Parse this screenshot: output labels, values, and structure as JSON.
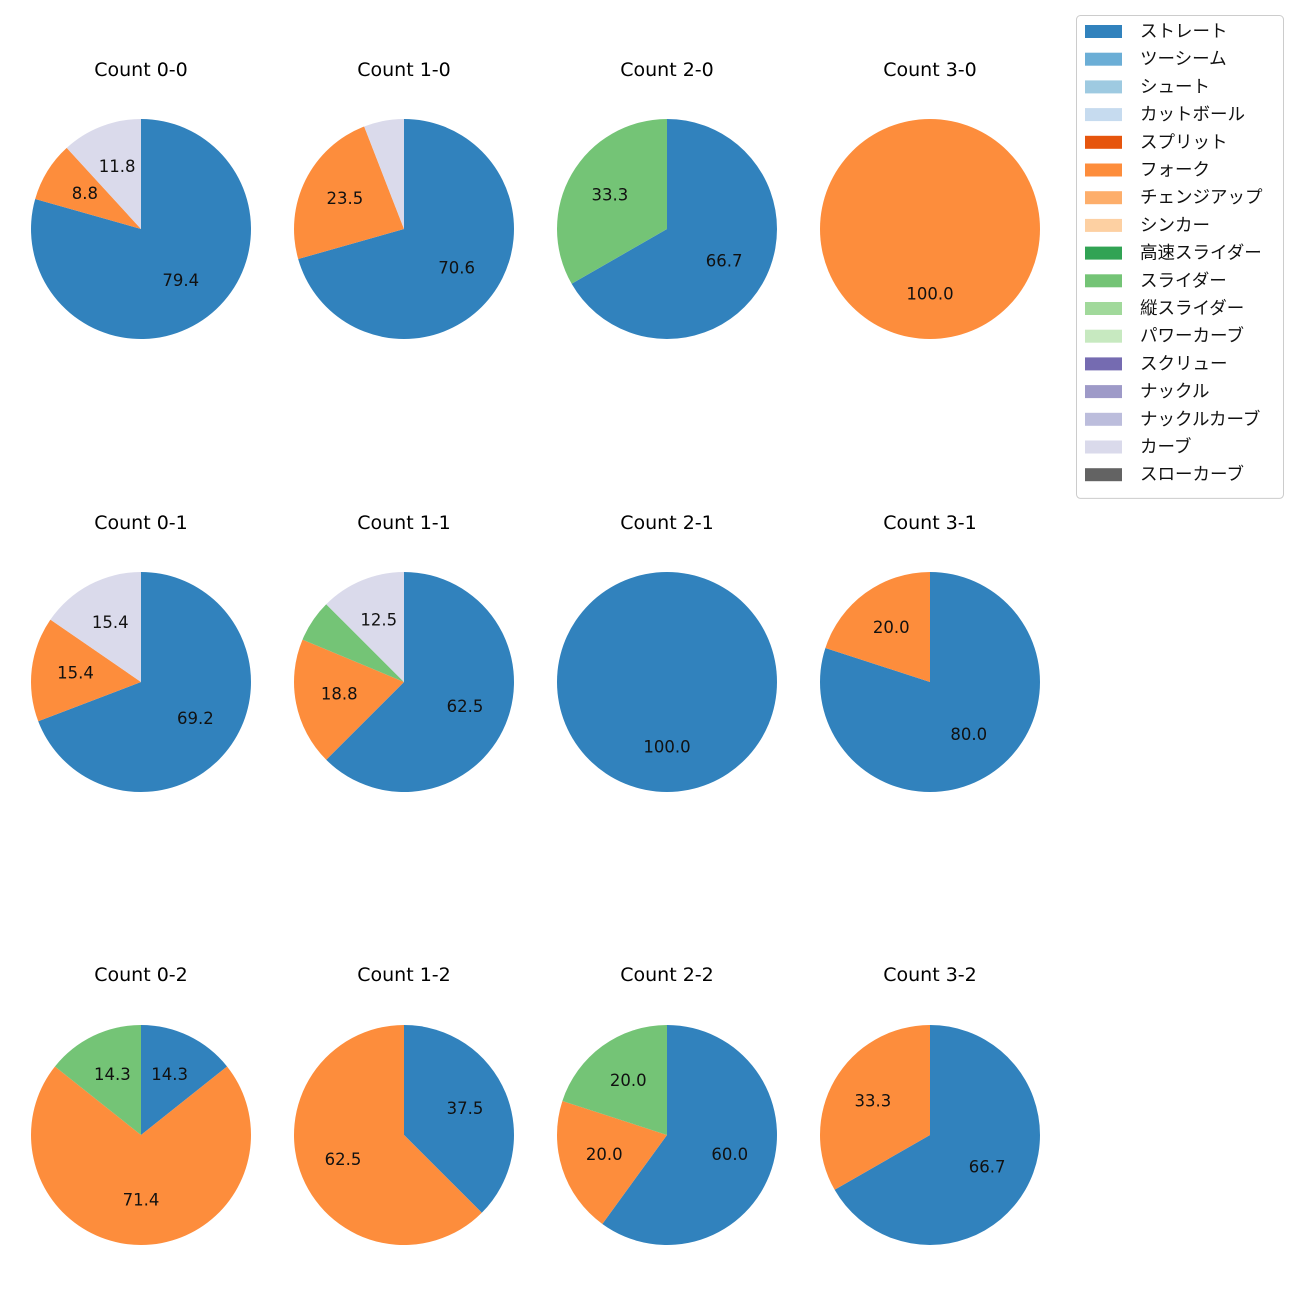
{
  "legend": [
    {
      "label": "ストレート",
      "color": "#3182bd"
    },
    {
      "label": "ツーシーム",
      "color": "#6baed6"
    },
    {
      "label": "シュート",
      "color": "#9ecae1"
    },
    {
      "label": "カットボール",
      "color": "#c6dbef"
    },
    {
      "label": "スプリット",
      "color": "#e6550d"
    },
    {
      "label": "フォーク",
      "color": "#fd8d3c"
    },
    {
      "label": "チェンジアップ",
      "color": "#fdae6b"
    },
    {
      "label": "シンカー",
      "color": "#fdd0a2"
    },
    {
      "label": "高速スライダー",
      "color": "#31a354"
    },
    {
      "label": "スライダー",
      "color": "#74c476"
    },
    {
      "label": "縦スライダー",
      "color": "#a1d99b"
    },
    {
      "label": "パワーカーブ",
      "color": "#c7e9c0"
    },
    {
      "label": "スクリュー",
      "color": "#756bb1"
    },
    {
      "label": "ナックル",
      "color": "#9e9ac8"
    },
    {
      "label": "ナックルカーブ",
      "color": "#bcbddc"
    },
    {
      "label": "カーブ",
      "color": "#dadaeb"
    },
    {
      "label": "スローカーブ",
      "color": "#636363"
    }
  ],
  "chart_data": [
    {
      "type": "pie",
      "title": "Count 0-0",
      "slices": [
        {
          "pitch": "ストレート",
          "value": 79.4,
          "label": "79.4"
        },
        {
          "pitch": "フォーク",
          "value": 8.8,
          "label": "8.8"
        },
        {
          "pitch": "カーブ",
          "value": 11.8,
          "label": "11.8"
        }
      ]
    },
    {
      "type": "pie",
      "title": "Count 1-0",
      "slices": [
        {
          "pitch": "ストレート",
          "value": 70.6,
          "label": "70.6"
        },
        {
          "pitch": "フォーク",
          "value": 23.5,
          "label": "23.5"
        },
        {
          "pitch": "カーブ",
          "value": 5.9,
          "label": ""
        }
      ]
    },
    {
      "type": "pie",
      "title": "Count 2-0",
      "slices": [
        {
          "pitch": "ストレート",
          "value": 66.7,
          "label": "66.7"
        },
        {
          "pitch": "スライダー",
          "value": 33.3,
          "label": "33.3"
        }
      ]
    },
    {
      "type": "pie",
      "title": "Count 3-0",
      "slices": [
        {
          "pitch": "フォーク",
          "value": 100.0,
          "label": "100.0"
        }
      ]
    },
    {
      "type": "pie",
      "title": "Count 0-1",
      "slices": [
        {
          "pitch": "ストレート",
          "value": 69.2,
          "label": "69.2"
        },
        {
          "pitch": "フォーク",
          "value": 15.4,
          "label": "15.4"
        },
        {
          "pitch": "カーブ",
          "value": 15.4,
          "label": "15.4"
        }
      ]
    },
    {
      "type": "pie",
      "title": "Count 1-1",
      "slices": [
        {
          "pitch": "ストレート",
          "value": 62.5,
          "label": "62.5"
        },
        {
          "pitch": "フォーク",
          "value": 18.8,
          "label": "18.8"
        },
        {
          "pitch": "スライダー",
          "value": 6.2,
          "label": ""
        },
        {
          "pitch": "カーブ",
          "value": 12.5,
          "label": "12.5"
        }
      ]
    },
    {
      "type": "pie",
      "title": "Count 2-1",
      "slices": [
        {
          "pitch": "ストレート",
          "value": 100.0,
          "label": "100.0"
        }
      ]
    },
    {
      "type": "pie",
      "title": "Count 3-1",
      "slices": [
        {
          "pitch": "ストレート",
          "value": 80.0,
          "label": "80.0"
        },
        {
          "pitch": "フォーク",
          "value": 20.0,
          "label": "20.0"
        }
      ]
    },
    {
      "type": "pie",
      "title": "Count 0-2",
      "slices": [
        {
          "pitch": "ストレート",
          "value": 14.3,
          "label": "14.3"
        },
        {
          "pitch": "フォーク",
          "value": 71.4,
          "label": "71.4"
        },
        {
          "pitch": "スライダー",
          "value": 14.3,
          "label": "14.3"
        }
      ]
    },
    {
      "type": "pie",
      "title": "Count 1-2",
      "slices": [
        {
          "pitch": "ストレート",
          "value": 37.5,
          "label": "37.5"
        },
        {
          "pitch": "フォーク",
          "value": 62.5,
          "label": "62.5"
        }
      ]
    },
    {
      "type": "pie",
      "title": "Count 2-2",
      "slices": [
        {
          "pitch": "ストレート",
          "value": 60.0,
          "label": "60.0"
        },
        {
          "pitch": "フォーク",
          "value": 20.0,
          "label": "20.0"
        },
        {
          "pitch": "スライダー",
          "value": 20.0,
          "label": "20.0"
        }
      ]
    },
    {
      "type": "pie",
      "title": "Count 3-2",
      "slices": [
        {
          "pitch": "ストレート",
          "value": 66.7,
          "label": "66.7"
        },
        {
          "pitch": "フォーク",
          "value": 33.3,
          "label": "33.3"
        }
      ]
    }
  ]
}
